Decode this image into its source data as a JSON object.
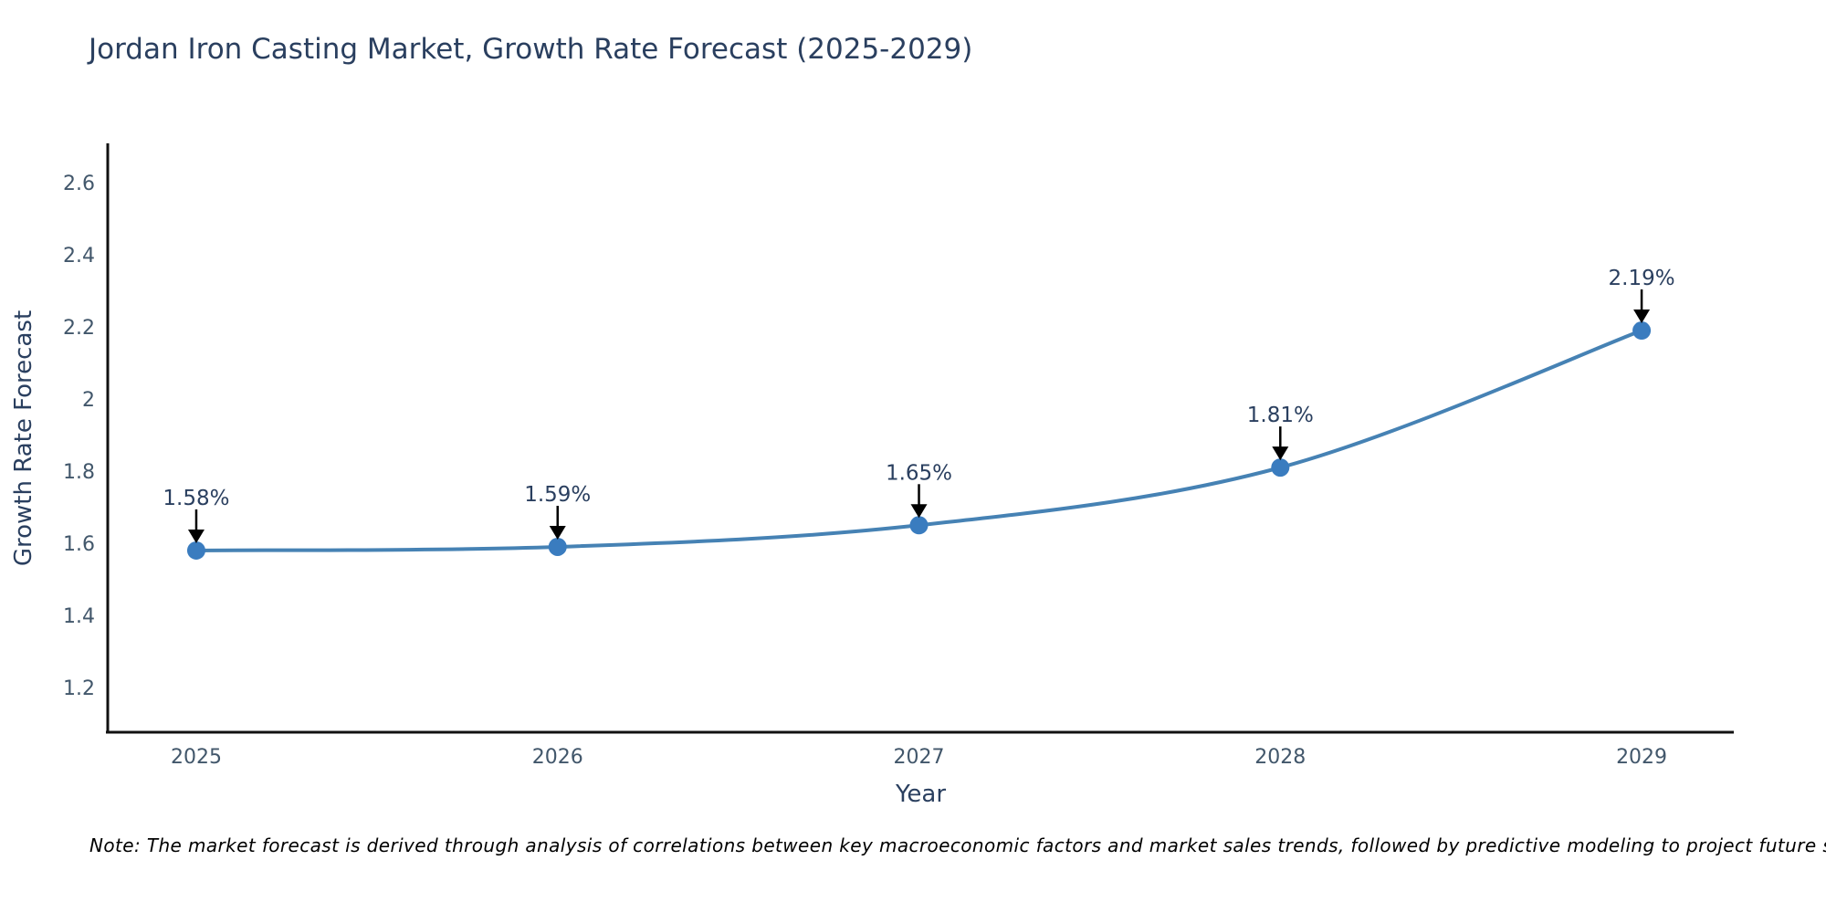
{
  "chart_data": {
    "type": "line",
    "title": "Jordan Iron Casting Market, Growth Rate Forecast (2025-2029)",
    "xlabel": "Year",
    "ylabel": "Growth Rate Forecast",
    "x": [
      2025,
      2026,
      2027,
      2028,
      2029
    ],
    "values": [
      1.58,
      1.59,
      1.65,
      1.81,
      2.19
    ],
    "point_labels": [
      "1.58%",
      "1.59%",
      "1.65%",
      "1.81%",
      "2.19%"
    ],
    "x_tick_labels": [
      "2025",
      "2026",
      "2027",
      "2028",
      "2029"
    ],
    "y_ticks": [
      2.6,
      2.4,
      2.2,
      2.0,
      1.8,
      1.6,
      1.4,
      1.2
    ],
    "y_tick_labels": [
      "2.6",
      "2.4",
      "2.2",
      "2",
      "1.8",
      "1.6",
      "1.4",
      "1.2"
    ],
    "xlim": [
      2024.755,
      2029.255
    ],
    "ylim": [
      1.076,
      2.704
    ],
    "grid": false,
    "legend": "none",
    "line_shape": "spline",
    "line_color": "#4682b4",
    "marker_color": "#3a7cbf",
    "marker_radius": 10,
    "line_width": 4,
    "arrow_color": "#000000",
    "axis_line_color": "#111111",
    "annotation_color": "#2a3f5f",
    "tick_color": "#42576b",
    "axis_title_color": "#2a3f5f"
  },
  "note": {
    "text": "Note: The market forecast is derived through analysis of correlations between key macroeconomic factors and market sales trends, followed by predictive modeling to project future sales"
  },
  "colors": {
    "background": "#ffffff",
    "title": "#2a3f5f"
  }
}
